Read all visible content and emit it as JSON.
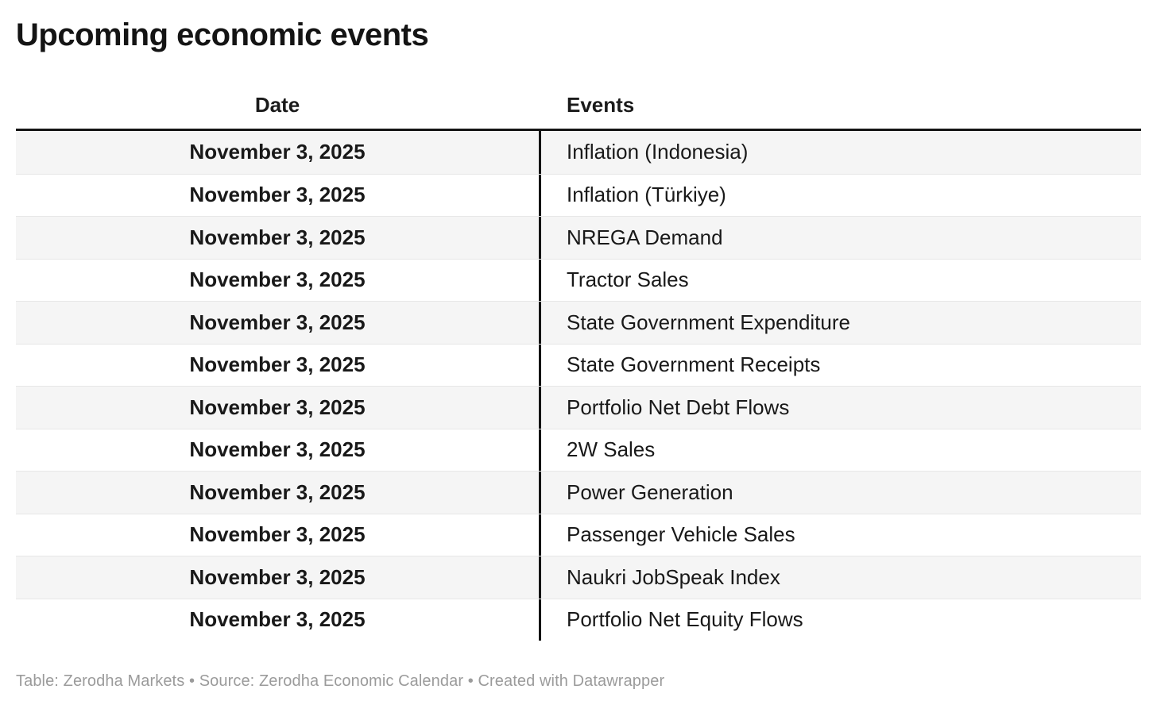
{
  "chart_data": {
    "type": "table",
    "title": "Upcoming economic events",
    "columns": [
      "Date",
      "Events"
    ],
    "rows": [
      [
        "November 3, 2025",
        "Inflation (Indonesia)"
      ],
      [
        "November 3, 2025",
        "Inflation (Türkiye)"
      ],
      [
        "November 3, 2025",
        "NREGA Demand"
      ],
      [
        "November 3, 2025",
        "Tractor Sales"
      ],
      [
        "November 3, 2025",
        "State Government Expenditure"
      ],
      [
        "November 3, 2025",
        "State Government Receipts"
      ],
      [
        "November 3, 2025",
        "Portfolio Net Debt Flows"
      ],
      [
        "November 3, 2025",
        "2W Sales"
      ],
      [
        "November 3, 2025",
        "Power Generation"
      ],
      [
        "November 3, 2025",
        "Passenger Vehicle Sales"
      ],
      [
        "November 3, 2025",
        "Naukri JobSpeak Index"
      ],
      [
        "November 3, 2025",
        "Portfolio Net Equity Flows"
      ]
    ],
    "layout": {
      "date_column_align": "center",
      "events_column_align": "left",
      "zebra_striping": true,
      "legend_position": "none"
    }
  },
  "footer": {
    "credit": "Table: Zerodha Markets • Source: Zerodha Economic Calendar • Created with Datawrapper"
  },
  "colors": {
    "text": "#191919",
    "rule_black": "#141414",
    "row_alt_background": "#f5f5f5",
    "row_separator": "#e7e7e7",
    "footer_gray": "#9b9b9b",
    "background": "#ffffff"
  }
}
